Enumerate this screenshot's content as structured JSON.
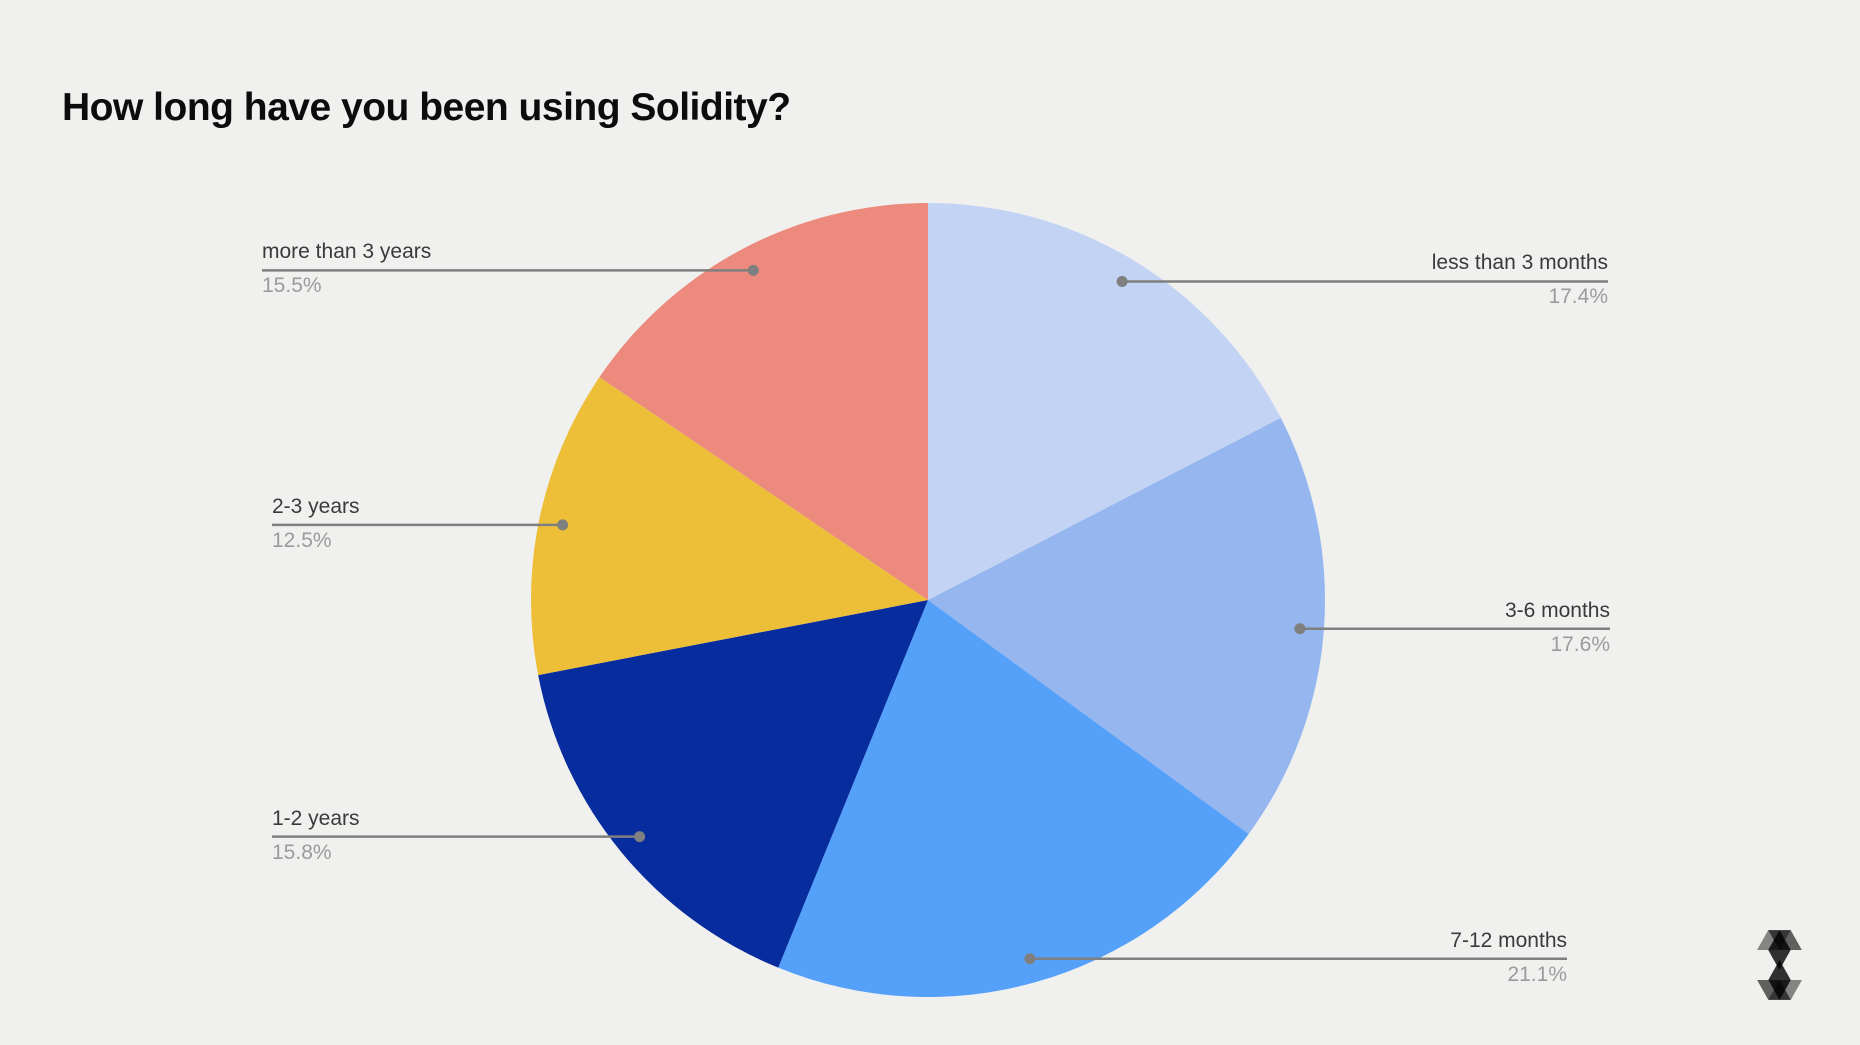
{
  "title": "How long have you been using Solidity?",
  "chart_data": {
    "type": "pie",
    "title": "How long have you been using Solidity?",
    "start_angle_deg": 0,
    "direction": "clockwise",
    "legend_position": "none",
    "slices": [
      {
        "label": "less than 3 months",
        "value_pct": 17.4,
        "pct_label": "17.4%",
        "color": "#c3d3f4"
      },
      {
        "label": "3-6 months",
        "value_pct": 17.6,
        "pct_label": "17.6%",
        "color": "#96b6ef"
      },
      {
        "label": "7-12 months",
        "value_pct": 21.1,
        "pct_label": "21.1%",
        "color": "#55a1fa"
      },
      {
        "label": "1-2 years",
        "value_pct": 15.8,
        "pct_label": "15.8%",
        "color": "#062c9e"
      },
      {
        "label": "2-3 years",
        "value_pct": 12.5,
        "pct_label": "12.5%",
        "color": "#edbf39"
      },
      {
        "label": "more than 3 years",
        "value_pct": 15.5,
        "pct_label": "15.5%",
        "color": "#ed8a7e"
      }
    ],
    "style": {
      "background": "#f0f0ee",
      "label_text_color": "#3a3a3a",
      "pct_text_color": "#9b9b9b",
      "leader_line_color": "#7f7f7f"
    }
  },
  "branding": {
    "logo_name": "solidity-logo"
  }
}
